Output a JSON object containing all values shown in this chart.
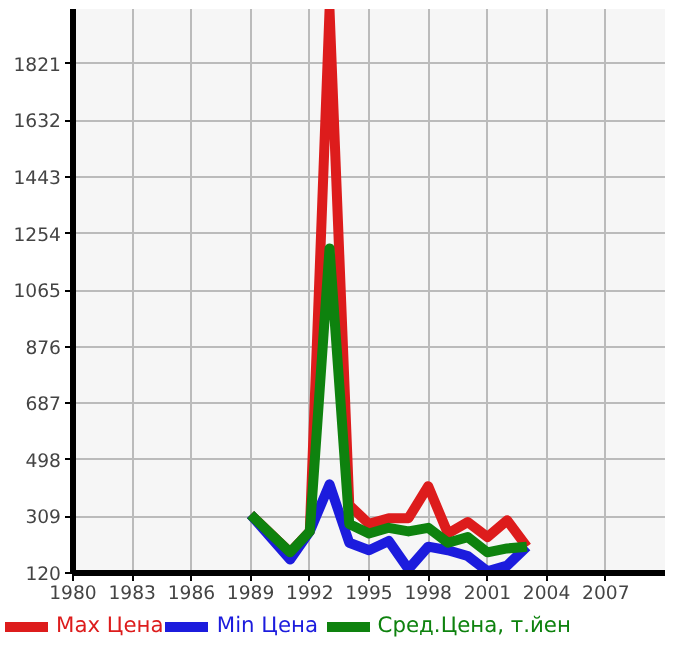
{
  "chart_data": {
    "type": "line",
    "x": [
      1989,
      1991,
      1992,
      1993,
      1994,
      1995,
      1996,
      1997,
      1998,
      1999,
      2000,
      2001,
      2002,
      2003
    ],
    "series": [
      {
        "name": "Max Цена",
        "color": "#dd1c1c",
        "values": [
          315,
          189,
          259,
          2000,
          347,
          284,
          303,
          303,
          410,
          252,
          290,
          240,
          296,
          208
        ]
      },
      {
        "name": "Min Цена",
        "color": "#1c1cdd",
        "values": [
          315,
          165,
          259,
          416,
          221,
          196,
          227,
          133,
          208,
          196,
          177,
          126,
          145,
          208
        ]
      },
      {
        "name": "Сред.Цена, т.йен",
        "color": "#0e820e",
        "values": [
          315,
          189,
          259,
          1204,
          284,
          252,
          271,
          259,
          271,
          221,
          240,
          189,
          202,
          208
        ]
      }
    ],
    "xlim": [
      1980,
      2010
    ],
    "xticks": [
      1980,
      1983,
      1986,
      1989,
      1992,
      1995,
      1998,
      2001,
      2004,
      2007
    ],
    "ylim": [
      120,
      2004
    ],
    "yticks": [
      120,
      309,
      498,
      687,
      876,
      1065,
      1254,
      1443,
      1632,
      1821
    ],
    "grid": true,
    "legend": "bottom",
    "marker": "none",
    "line_style": "solid"
  }
}
